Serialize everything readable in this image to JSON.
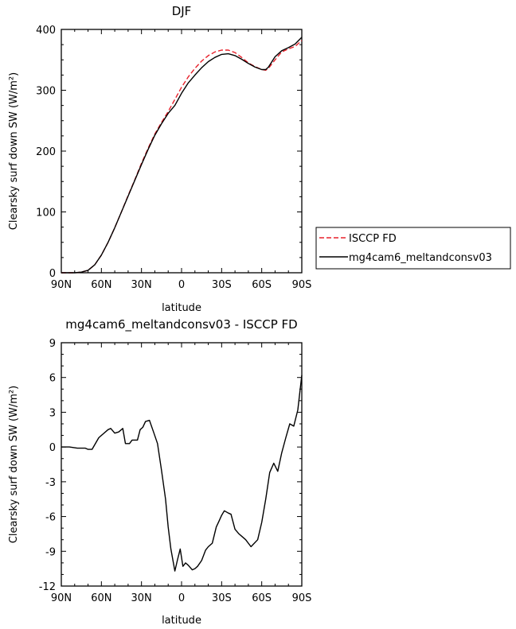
{
  "chart_data": [
    {
      "type": "line",
      "title": "DJF",
      "xlabel": "latitude",
      "ylabel": "Clearsky surf down SW (W/m²)",
      "xlim": [
        -90,
        90
      ],
      "ylim": [
        0,
        400
      ],
      "x_ticks": [
        -90,
        -60,
        -30,
        0,
        30,
        60,
        90
      ],
      "x_tick_labels": [
        "90N",
        "60N",
        "30N",
        "0",
        "30S",
        "60S",
        "90S"
      ],
      "y_ticks": [
        0,
        100,
        200,
        300,
        400
      ],
      "y_tick_labels": [
        "0",
        "100",
        "200",
        "300",
        "400"
      ],
      "legend_position": "outside-right",
      "series": [
        {
          "name": "ISCCP FD",
          "color": "#e8202a",
          "dash": "dashed",
          "x": [
            -90,
            -80,
            -75,
            -70,
            -65,
            -60,
            -55,
            -50,
            -45,
            -40,
            -35,
            -30,
            -25,
            -20,
            -15,
            -10,
            -5,
            0,
            5,
            10,
            15,
            20,
            25,
            30,
            35,
            40,
            45,
            50,
            55,
            60,
            63,
            65,
            70,
            75,
            80,
            85,
            90
          ],
          "values": [
            0,
            0,
            1,
            4,
            13,
            29,
            50,
            74,
            100,
            127,
            153,
            180,
            205,
            228,
            247,
            265,
            285,
            305,
            322,
            336,
            348,
            357,
            363,
            366,
            366,
            362,
            354,
            345,
            339,
            334,
            333,
            336,
            350,
            363,
            368,
            372,
            382
          ]
        },
        {
          "name": "mg4cam6_meltandconsv03",
          "color": "#000000",
          "dash": "solid",
          "x": [
            -90,
            -80,
            -75,
            -70,
            -65,
            -60,
            -55,
            -50,
            -45,
            -40,
            -35,
            -30,
            -25,
            -20,
            -15,
            -10,
            -5,
            0,
            5,
            10,
            15,
            20,
            25,
            30,
            35,
            40,
            45,
            50,
            55,
            60,
            63,
            65,
            70,
            75,
            80,
            85,
            90
          ],
          "values": [
            0,
            0,
            1,
            4,
            13,
            29,
            50,
            74,
            100,
            126,
            152,
            178,
            203,
            226,
            245,
            262,
            275,
            295,
            312,
            325,
            337,
            347,
            354,
            359,
            360,
            357,
            351,
            344,
            338,
            334,
            334,
            338,
            355,
            365,
            370,
            376,
            387
          ]
        }
      ]
    },
    {
      "type": "line",
      "title": "mg4cam6_meltandconsv03 - ISCCP FD",
      "xlabel": "latitude",
      "ylabel": "Clearsky surf down SW (W/m²)",
      "xlim": [
        -90,
        90
      ],
      "ylim": [
        -12,
        9
      ],
      "x_ticks": [
        -90,
        -60,
        -30,
        0,
        30,
        60,
        90
      ],
      "x_tick_labels": [
        "90N",
        "60N",
        "30N",
        "0",
        "30S",
        "60S",
        "90S"
      ],
      "y_ticks": [
        -12,
        -9,
        -6,
        -3,
        0,
        3,
        6,
        9
      ],
      "y_tick_labels": [
        "-12",
        "-9",
        "-6",
        "-3",
        "0",
        "3",
        "6",
        "9"
      ],
      "series": [
        {
          "color": "#000000",
          "dash": "solid",
          "x": [
            -90,
            -84,
            -78,
            -72,
            -70,
            -67,
            -62,
            -59,
            -55,
            -53,
            -50,
            -47,
            -44,
            -42,
            -39,
            -37,
            -35,
            -33,
            -31,
            -29,
            -27,
            -24,
            -21,
            -18,
            -15,
            -12,
            -10,
            -8,
            -5,
            -3,
            -1,
            1,
            3,
            5,
            8,
            10,
            12,
            15,
            18,
            20,
            23,
            26,
            28,
            30,
            32,
            35,
            37,
            40,
            43,
            45,
            48,
            52,
            57,
            60,
            63,
            66,
            69,
            72,
            75,
            78,
            81,
            84,
            87,
            90
          ],
          "values": [
            0,
            0,
            -0.1,
            -0.1,
            -0.2,
            -0.2,
            0.8,
            1.1,
            1.5,
            1.6,
            1.2,
            1.3,
            1.6,
            0.3,
            0.3,
            0.6,
            0.6,
            0.6,
            1.5,
            1.7,
            2.2,
            2.3,
            1.3,
            0.3,
            -2.0,
            -4.5,
            -6.9,
            -8.8,
            -10.7,
            -9.7,
            -8.8,
            -10.3,
            -10.0,
            -10.2,
            -10.6,
            -10.5,
            -10.3,
            -9.8,
            -8.9,
            -8.6,
            -8.3,
            -6.9,
            -6.4,
            -5.9,
            -5.5,
            -5.7,
            -5.8,
            -7.1,
            -7.5,
            -7.7,
            -8.0,
            -8.6,
            -8.0,
            -6.5,
            -4.5,
            -2.2,
            -1.4,
            -2.1,
            -0.5,
            0.8,
            2.0,
            1.8,
            3.2,
            6.2
          ]
        }
      ]
    }
  ]
}
